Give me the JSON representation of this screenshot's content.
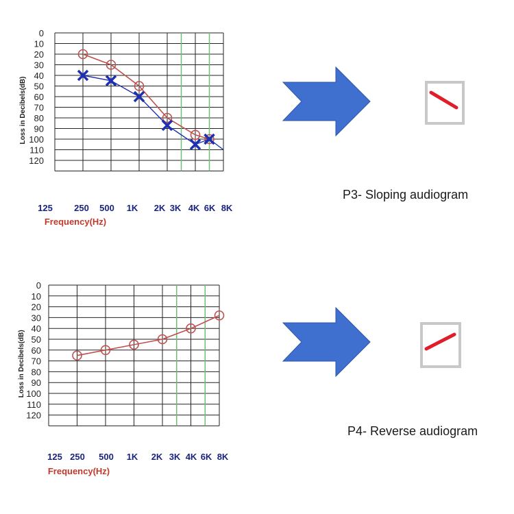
{
  "colors": {
    "right_ear": "#c0504d",
    "left_ear": "#1f2fb4",
    "arrow_fill": "#3f6fcf",
    "arrow_stroke": "#2f55a8",
    "icon_frame": "#c8c8c8",
    "icon_line": "#e01e2a",
    "grid": "#222222",
    "freq_highlight": "#6fbf73"
  },
  "chart_data": [
    {
      "type": "line",
      "ylabel": "Loss in Decibels(dB)",
      "xlabel": "Frequency(Hz)",
      "x_ticks": [
        "125",
        "250",
        "500",
        "1K",
        "2K",
        "3K",
        "4K",
        "6K",
        "8K"
      ],
      "y_ticks": [
        "0",
        "10",
        "20",
        "30",
        "40",
        "50",
        "60",
        "70",
        "80",
        "90",
        "100",
        "110",
        "120"
      ],
      "ylim": [
        0,
        120
      ],
      "y_inverted": true,
      "grid": true,
      "highlighted_frequencies": [
        "3K",
        "6K"
      ],
      "series": [
        {
          "marker": "circle",
          "color": "#c0504d",
          "x": [
            "250",
            "500",
            "1K",
            "2K",
            "4K",
            "6K"
          ],
          "values": [
            20,
            30,
            50,
            80,
            96,
            100
          ]
        },
        {
          "marker": "cross",
          "color": "#1f2fb4",
          "x": [
            "250",
            "500",
            "1K",
            "2K",
            "4K",
            "6K"
          ],
          "values": [
            40,
            45,
            60,
            87,
            105,
            100
          ],
          "tail": {
            "x": "8K",
            "value": 110
          }
        }
      ],
      "caption": "P3- Sloping audiogram",
      "icon": "descending-line-icon"
    },
    {
      "type": "line",
      "ylabel": "Loss in Decibels(dB)",
      "xlabel": "Frequency(Hz)",
      "x_ticks": [
        "125",
        "250",
        "500",
        "1K",
        "2K",
        "3K",
        "4K",
        "6K",
        "8K"
      ],
      "y_ticks": [
        "0",
        "10",
        "20",
        "30",
        "40",
        "50",
        "60",
        "70",
        "80",
        "90",
        "100",
        "110",
        "120"
      ],
      "ylim": [
        0,
        120
      ],
      "y_inverted": true,
      "grid": true,
      "highlighted_frequencies": [
        "3K",
        "6K"
      ],
      "series": [
        {
          "marker": "circle",
          "color": "#c0504d",
          "x": [
            "250",
            "500",
            "1K",
            "2K",
            "4K",
            "8K"
          ],
          "values": [
            65,
            60,
            55,
            50,
            40,
            28
          ]
        }
      ],
      "caption": "P4- Reverse audiogram",
      "icon": "ascending-line-icon"
    }
  ]
}
